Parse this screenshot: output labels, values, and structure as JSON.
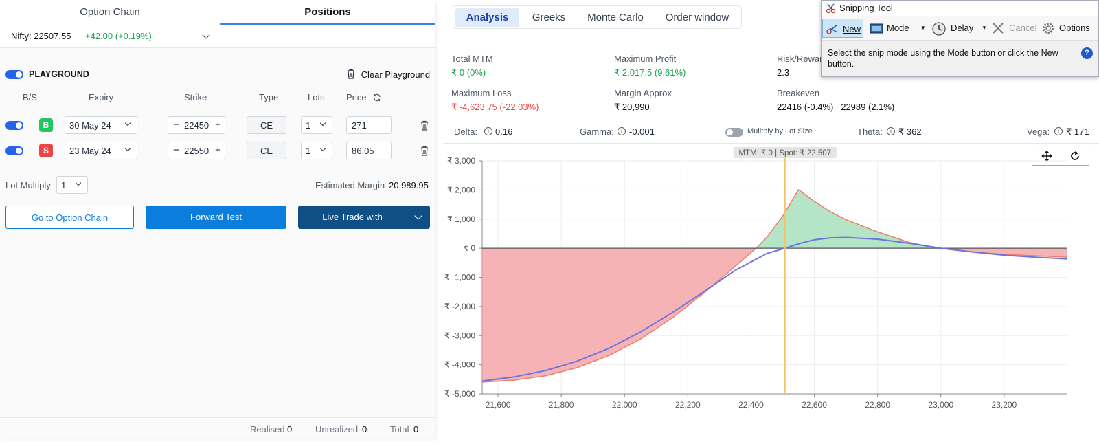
{
  "left_panel": {
    "tabs": [
      "Option Chain",
      "Positions"
    ],
    "index": {
      "label": "Nifty: 22507.55",
      "change": "+42.00 (+0.19%)"
    },
    "playground": {
      "label": "PLAYGROUND",
      "clear": "Clear Playground"
    },
    "columns": [
      "B/S",
      "Expiry",
      "Strike",
      "Type",
      "Lots",
      "Price"
    ],
    "rows": [
      {
        "side": "B",
        "expiry": "30 May 24",
        "strike": "22450",
        "type": "CE",
        "lots": "1",
        "price": "271"
      },
      {
        "side": "S",
        "expiry": "23 May 24",
        "strike": "22550",
        "type": "CE",
        "lots": "1",
        "price": "86.05"
      }
    ],
    "lot_multiply": {
      "label": "Lot Multiply",
      "value": "1"
    },
    "estimated_margin": {
      "label": "Estimated Margin",
      "value": "20,989.95"
    },
    "buttons": {
      "option_chain": "Go to Option Chain",
      "forward_test": "Forward Test",
      "live_trade": "Live Trade with"
    },
    "footer": {
      "realised_label": "Realised",
      "realised": "0",
      "unrealized_label": "Unrealized",
      "unrealized": "0",
      "total_label": "Total",
      "total": "0"
    }
  },
  "right_panel": {
    "tabs": [
      "Analysis",
      "Greeks",
      "Monte Carlo",
      "Order window"
    ],
    "metrics": {
      "total_mtm": {
        "label": "Total MTM",
        "value": "₹ 0 (0%)"
      },
      "max_profit": {
        "label": "Maximum Profit",
        "value": "₹ 2,017.5 (9.61%)"
      },
      "risk_reward": {
        "label": "Risk/Rewar",
        "value": "2.3"
      },
      "max_loss": {
        "label": "Maximum Loss",
        "value": "₹ -4,623.75 (-22.03%)"
      },
      "margin": {
        "label": "Margin Approx",
        "value": "₹ 20,990"
      },
      "breakeven": {
        "label": "Breakeven",
        "value": "22416 (-0.4%)   22989 (2.1%)"
      }
    },
    "greeks": {
      "delta": {
        "label": "Delta:",
        "value": "0.16"
      },
      "gamma": {
        "label": "Gamma:",
        "value": "-0.001"
      },
      "multiply": "Mulitply by Lot Size",
      "theta": {
        "label": "Theta:",
        "value": "₹ 362"
      },
      "vega": {
        "label": "Vega:",
        "value": "₹ 171"
      }
    },
    "chart_tooltip": "MTM: ₹ 0  |  Spot: ₹ 22,507"
  },
  "snipping_tool": {
    "title": "Snipping Tool",
    "buttons": {
      "new": "New",
      "mode": "Mode",
      "delay": "Delay",
      "cancel": "Cancel",
      "options": "Options"
    },
    "description": "Select the snip mode using the Mode button or click the New button.",
    "help": "?"
  },
  "colors": {
    "accent": "#0b7ddc",
    "dark_accent": "#0f4f86",
    "profit": "#16a34a",
    "loss": "#ef4444",
    "spot_line": "#f5c26b"
  },
  "chart_data": {
    "type": "area",
    "xlabel": "",
    "ylabel": "",
    "xlim": [
      21550,
      23400
    ],
    "ylim": [
      -5000,
      3000
    ],
    "x_ticks": [
      21600,
      21800,
      22000,
      22200,
      22400,
      22600,
      22800,
      23000,
      23200
    ],
    "x_tick_labels": [
      "21,600",
      "21,800",
      "22,000",
      "22,200",
      "22,400",
      "22,600",
      "22,800",
      "23,000",
      "23,200"
    ],
    "y_ticks": [
      3000,
      2000,
      1000,
      0,
      -1000,
      -2000,
      -3000,
      -4000,
      -5000
    ],
    "y_tick_labels": [
      "₹ 3,000",
      "₹ 2,000",
      "₹ 1,000",
      "₹ 0",
      "₹ -1,000",
      "₹ -2,000",
      "₹ -3,000",
      "₹ -4,000",
      "₹ -5,000"
    ],
    "spot": 22507,
    "series": [
      {
        "kind": "payoff_expiry",
        "x": [
          21550,
          21650,
          21750,
          21850,
          21950,
          22050,
          22150,
          22250,
          22350,
          22416,
          22450,
          22500,
          22550,
          22600,
          22650,
          22700,
          22800,
          22900,
          22989,
          23100,
          23200,
          23300,
          23400
        ],
        "y": [
          -4600,
          -4530,
          -4380,
          -4100,
          -3690,
          -3120,
          -2400,
          -1550,
          -620,
          0,
          380,
          1100,
          2010,
          1610,
          1260,
          980,
          560,
          200,
          0,
          -130,
          -210,
          -260,
          -310
        ]
      },
      {
        "kind": "mtm_today",
        "x": [
          21550,
          21650,
          21750,
          21850,
          21950,
          22050,
          22150,
          22250,
          22350,
          22450,
          22507,
          22550,
          22600,
          22650,
          22700,
          22800,
          22900,
          23000,
          23100,
          23200,
          23300,
          23400
        ],
        "y": [
          -4560,
          -4420,
          -4200,
          -3880,
          -3440,
          -2880,
          -2220,
          -1500,
          -760,
          -180,
          0,
          150,
          290,
          355,
          370,
          310,
          170,
          0,
          -130,
          -240,
          -310,
          -370
        ]
      }
    ]
  }
}
